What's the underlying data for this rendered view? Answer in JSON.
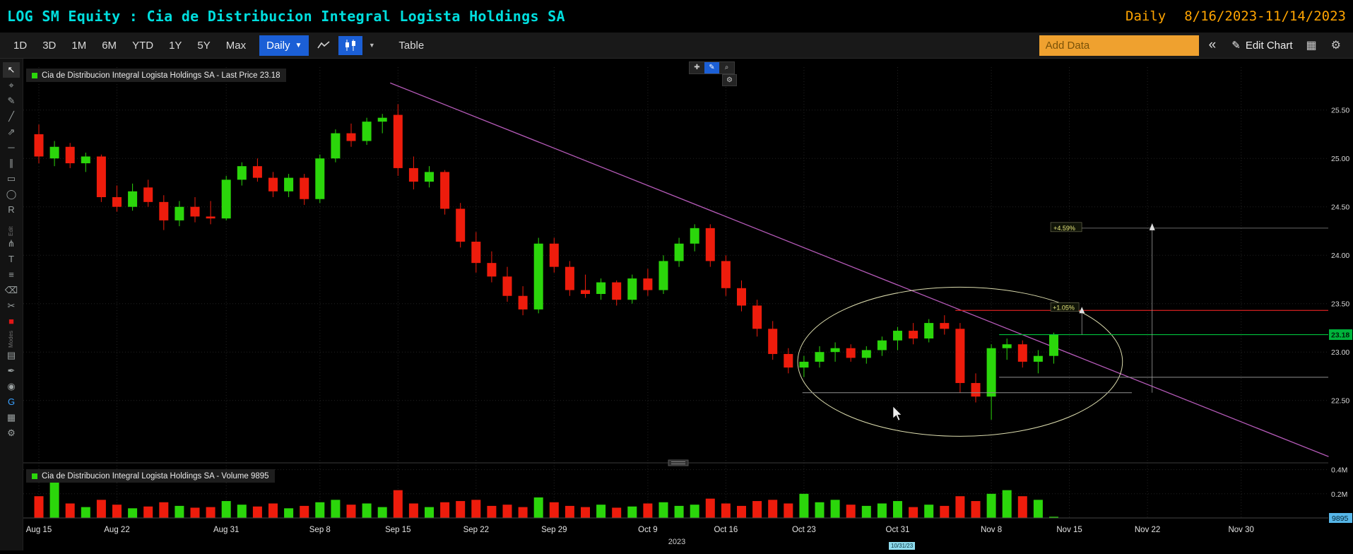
{
  "header": {
    "title": "LOG SM Equity : Cia de Distribucion Integral Logista Holdings SA",
    "period_label": "Daily",
    "range_label": "8/16/2023-11/14/2023"
  },
  "toolbar": {
    "ranges": [
      "1D",
      "3D",
      "1M",
      "6M",
      "YTD",
      "1Y",
      "5Y",
      "Max"
    ],
    "period_dropdown": "Daily",
    "table_label": "Table",
    "add_data_placeholder": "Add Data",
    "collapse_label": "«",
    "edit_chart_label": "Edit Chart"
  },
  "icons": {
    "dropdown_caret": "▼",
    "pencil": "✎",
    "gear": "⚙",
    "grid": "▦",
    "move": "✚",
    "magnifier": "⌕"
  },
  "left_toolbar": {
    "tools": [
      {
        "name": "cursor",
        "glyph": "↖",
        "accent": "active"
      },
      {
        "name": "crosshair",
        "glyph": "⌖"
      },
      {
        "name": "pencil",
        "glyph": "✎"
      },
      {
        "name": "trendline",
        "glyph": "╱"
      },
      {
        "name": "ray",
        "glyph": "⇗"
      },
      {
        "name": "horizontal-line",
        "glyph": "─"
      },
      {
        "name": "channel",
        "glyph": "∥"
      },
      {
        "name": "rectangle",
        "glyph": "▭"
      },
      {
        "name": "ellipse",
        "glyph": "◯"
      },
      {
        "name": "retracement",
        "glyph": "R"
      },
      {
        "name": "pitchfork",
        "glyph": "⋔"
      },
      {
        "name": "text",
        "glyph": "T"
      },
      {
        "name": "levels",
        "glyph": "≡"
      },
      {
        "name": "eraser",
        "glyph": "⌫"
      },
      {
        "name": "delete",
        "glyph": "✂"
      },
      {
        "name": "color-swatch",
        "glyph": "■",
        "accent": "red"
      },
      {
        "name": "style",
        "glyph": "▤"
      },
      {
        "name": "pen",
        "glyph": "✒"
      },
      {
        "name": "magnet",
        "glyph": "◉"
      },
      {
        "name": "globe",
        "glyph": "G",
        "accent": "blue"
      },
      {
        "name": "layers",
        "glyph": "▦"
      },
      {
        "name": "settings",
        "glyph": "⚙"
      }
    ],
    "sections": [
      {
        "label": "Edit",
        "after": 9
      },
      {
        "label": "Modes",
        "after": 15
      }
    ]
  },
  "legend": {
    "price": "Cia de Distribucion Integral Logista Holdings SA - Last Price 23.18",
    "volume": "Cia de Distribucion Integral Logista Holdings SA - Volume 9895"
  },
  "chart_data": {
    "type": "candlestick",
    "title": "Cia de Distribucion Integral Logista Holdings SA",
    "period": "Daily",
    "date_range": "8/16/2023-11/14/2023",
    "last_price": 23.18,
    "last_volume": 9895,
    "price_ticks": [
      25.5,
      25.0,
      24.5,
      24.0,
      23.5,
      23.0,
      22.5
    ],
    "price_range": [
      22.05,
      25.85
    ],
    "volume_ticks": [
      {
        "label": "0.4M",
        "value": 400000
      },
      {
        "label": "0.2M",
        "value": 200000
      }
    ],
    "x_ticks": [
      {
        "label": "Aug 15",
        "i": 0
      },
      {
        "label": "Aug 22",
        "i": 5
      },
      {
        "label": "Aug 31",
        "i": 12
      },
      {
        "label": "Sep 8",
        "i": 18
      },
      {
        "label": "Sep 15",
        "i": 23
      },
      {
        "label": "Sep 22",
        "i": 28
      },
      {
        "label": "Sep 29",
        "i": 33
      },
      {
        "label": "Oct 9",
        "i": 39
      },
      {
        "label": "Oct 16",
        "i": 44
      },
      {
        "label": "Oct 23",
        "i": 49
      },
      {
        "label": "Oct 31",
        "i": 55
      },
      {
        "label": "Nov 8",
        "i": 61
      },
      {
        "label": "Nov 15",
        "i": 66
      },
      {
        "label": "Nov 22",
        "i": 71
      },
      {
        "label": "Nov 30",
        "i": 77
      }
    ],
    "year_label": "2023",
    "date_badge": "10/31/23",
    "colors": {
      "up": "#2bd60b",
      "down": "#ee1c0c",
      "last_price_line": "#00c23c",
      "last_price_badge": "#00b43c",
      "volume_badge": "#56b6e8",
      "alert_line": "#c21d1d",
      "support_line": "#8f8f8f",
      "trend_line": "#b55ab8",
      "ellipse": "#dcdcae",
      "measure_text": "#e6e67a",
      "axis_text": "#d9d9d9"
    },
    "candles": [
      [
        25.25,
        25.35,
        24.95,
        25.02
      ],
      [
        25.0,
        25.18,
        24.92,
        25.12
      ],
      [
        25.12,
        25.16,
        24.9,
        24.95
      ],
      [
        24.95,
        25.06,
        24.86,
        25.02
      ],
      [
        25.02,
        25.04,
        24.55,
        24.6
      ],
      [
        24.6,
        24.72,
        24.45,
        24.5
      ],
      [
        24.5,
        24.74,
        24.46,
        24.66
      ],
      [
        24.7,
        24.78,
        24.5,
        24.55
      ],
      [
        24.55,
        24.62,
        24.26,
        24.36
      ],
      [
        24.36,
        24.56,
        24.3,
        24.5
      ],
      [
        24.5,
        24.6,
        24.34,
        24.4
      ],
      [
        24.4,
        24.56,
        24.32,
        24.38
      ],
      [
        24.38,
        24.82,
        24.36,
        24.78
      ],
      [
        24.78,
        24.96,
        24.72,
        24.92
      ],
      [
        24.92,
        25.0,
        24.76,
        24.8
      ],
      [
        24.8,
        24.86,
        24.6,
        24.66
      ],
      [
        24.66,
        24.84,
        24.6,
        24.8
      ],
      [
        24.8,
        24.84,
        24.52,
        24.58
      ],
      [
        24.58,
        25.04,
        24.54,
        25.0
      ],
      [
        25.0,
        25.3,
        24.96,
        25.26
      ],
      [
        25.26,
        25.36,
        25.12,
        25.18
      ],
      [
        25.18,
        25.42,
        25.14,
        25.38
      ],
      [
        25.38,
        25.46,
        25.26,
        25.42
      ],
      [
        25.45,
        25.56,
        24.82,
        24.9
      ],
      [
        24.9,
        25.02,
        24.68,
        24.76
      ],
      [
        24.76,
        24.92,
        24.7,
        24.86
      ],
      [
        24.86,
        24.88,
        24.42,
        24.48
      ],
      [
        24.48,
        24.54,
        24.08,
        24.14
      ],
      [
        24.14,
        24.24,
        23.82,
        23.92
      ],
      [
        23.92,
        24.04,
        23.72,
        23.78
      ],
      [
        23.78,
        23.88,
        23.52,
        23.58
      ],
      [
        23.58,
        23.68,
        23.38,
        23.44
      ],
      [
        23.44,
        24.18,
        23.4,
        24.12
      ],
      [
        24.12,
        24.18,
        23.82,
        23.88
      ],
      [
        23.88,
        23.94,
        23.58,
        23.64
      ],
      [
        23.64,
        23.8,
        23.56,
        23.6
      ],
      [
        23.6,
        23.76,
        23.54,
        23.72
      ],
      [
        23.72,
        23.74,
        23.48,
        23.54
      ],
      [
        23.54,
        23.8,
        23.5,
        23.76
      ],
      [
        23.76,
        23.86,
        23.58,
        23.64
      ],
      [
        23.64,
        24.0,
        23.6,
        23.94
      ],
      [
        23.94,
        24.18,
        23.88,
        24.12
      ],
      [
        24.12,
        24.32,
        24.04,
        24.28
      ],
      [
        24.28,
        24.32,
        23.88,
        23.94
      ],
      [
        23.94,
        24.0,
        23.58,
        23.66
      ],
      [
        23.66,
        23.74,
        23.42,
        23.48
      ],
      [
        23.48,
        23.54,
        23.16,
        23.24
      ],
      [
        23.24,
        23.32,
        22.92,
        22.98
      ],
      [
        22.98,
        23.04,
        22.78,
        22.84
      ],
      [
        22.84,
        22.96,
        22.74,
        22.9
      ],
      [
        22.9,
        23.06,
        22.84,
        23.0
      ],
      [
        23.0,
        23.1,
        22.9,
        23.04
      ],
      [
        23.04,
        23.08,
        22.9,
        22.94
      ],
      [
        22.94,
        23.06,
        22.88,
        23.02
      ],
      [
        23.02,
        23.16,
        22.96,
        23.12
      ],
      [
        23.12,
        23.26,
        23.02,
        23.22
      ],
      [
        23.22,
        23.3,
        23.08,
        23.14
      ],
      [
        23.14,
        23.34,
        23.1,
        23.3
      ],
      [
        23.3,
        23.38,
        23.18,
        23.24
      ],
      [
        23.24,
        23.3,
        22.58,
        22.68
      ],
      [
        22.68,
        22.78,
        22.48,
        22.54
      ],
      [
        22.54,
        23.08,
        22.3,
        23.04
      ],
      [
        23.04,
        23.14,
        22.92,
        23.08
      ],
      [
        23.08,
        23.12,
        22.84,
        22.9
      ],
      [
        22.9,
        23.02,
        22.78,
        22.96
      ],
      [
        22.96,
        23.2,
        22.88,
        23.18
      ]
    ],
    "volumes": [
      180000,
      400000,
      120000,
      90000,
      150000,
      110000,
      80000,
      95000,
      130000,
      100000,
      85000,
      90000,
      140000,
      110000,
      95000,
      120000,
      80000,
      100000,
      130000,
      150000,
      110000,
      120000,
      90000,
      230000,
      120000,
      90000,
      130000,
      140000,
      150000,
      100000,
      110000,
      90000,
      170000,
      130000,
      100000,
      90000,
      110000,
      85000,
      95000,
      120000,
      130000,
      100000,
      110000,
      160000,
      120000,
      100000,
      140000,
      150000,
      120000,
      200000,
      130000,
      150000,
      110000,
      100000,
      120000,
      140000,
      90000,
      110000,
      100000,
      180000,
      140000,
      200000,
      230000,
      180000,
      150000,
      9895
    ],
    "annotations": {
      "trendline": {
        "i1": 22.5,
        "p1": 25.78,
        "i2": 82.6,
        "p2": 21.92
      },
      "ellipse": {
        "ci": 59,
        "cp": 22.9,
        "ri": 10.4,
        "rp": 0.77
      },
      "alert_line": {
        "price": 23.43,
        "i1": 58.7
      },
      "last_price_line": {
        "price": 23.18,
        "i1": 61.5
      },
      "upper_gray_line": {
        "price": 22.74,
        "i1": 61.5
      },
      "support_line": {
        "price": 22.58,
        "i1": 48.9,
        "i2": 70.0
      },
      "measure_big": {
        "label": "+4.59%",
        "price": 24.28,
        "label_i": 64.8,
        "arrow_i": 71.3,
        "to_price": 22.58
      },
      "measure_small": {
        "label": "+1.05%",
        "price_from": 23.43,
        "price_to": 23.18,
        "label_i": 64.8,
        "arrow_i": 66.8
      }
    }
  }
}
